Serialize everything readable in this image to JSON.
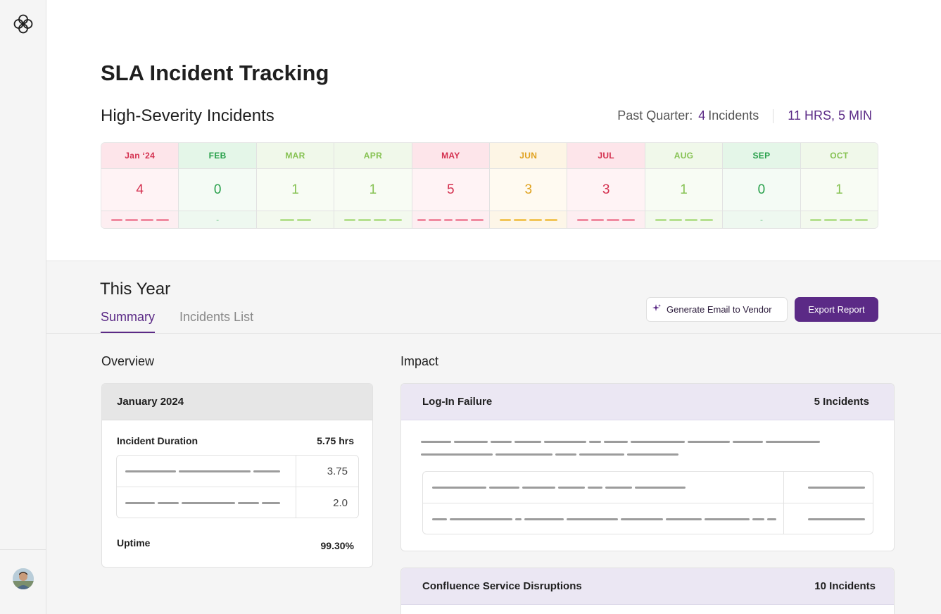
{
  "page": {
    "title": "SLA Incident Tracking"
  },
  "high_severity": {
    "title": "High-Severity Incidents",
    "past_quarter_label": "Past Quarter:",
    "past_quarter_count": "4",
    "past_quarter_unit": "Incidents",
    "duration": "11 HRS, 5 MIN"
  },
  "months": [
    {
      "label": "Jan ‘24",
      "count": "4",
      "level": "red",
      "bars": 4
    },
    {
      "label": "FEB",
      "count": "0",
      "level": "green",
      "bars": 0,
      "empty": "-"
    },
    {
      "label": "MAR",
      "count": "1",
      "level": "lime",
      "bars": 2
    },
    {
      "label": "APR",
      "count": "1",
      "level": "lime",
      "bars": 4
    },
    {
      "label": "MAY",
      "count": "5",
      "level": "red",
      "bars": 5
    },
    {
      "label": "JUN",
      "count": "3",
      "level": "amber",
      "bars": 4
    },
    {
      "label": "JUL",
      "count": "3",
      "level": "red",
      "bars": 4
    },
    {
      "label": "AUG",
      "count": "1",
      "level": "lime",
      "bars": 4
    },
    {
      "label": "SEP",
      "count": "0",
      "level": "green",
      "bars": 0,
      "empty": "-"
    },
    {
      "label": "OCT",
      "count": "1",
      "level": "lime",
      "bars": 4
    }
  ],
  "year": {
    "title": "This Year",
    "tabs": [
      "Summary",
      "Incidents List"
    ],
    "active_tab": "Summary",
    "generate_email_label": "Generate Email to Vendor",
    "export_label": "Export Report"
  },
  "overview": {
    "title": "Overview",
    "month": "January 2024",
    "duration_label": "Incident Duration",
    "duration_value": "5.75 hrs",
    "rows": [
      "3.75",
      "2.0"
    ],
    "uptime_label": "Uptime",
    "uptime_value": "99.30%"
  },
  "impact": {
    "title": "Impact",
    "cards": [
      {
        "name": "Log-In Failure",
        "count": "5 Incidents"
      },
      {
        "name": "Confluence Service Disruptions",
        "count": "10 Incidents"
      }
    ]
  },
  "colors": {
    "accent": "#5b2a86",
    "red": "#d4304f",
    "green": "#27a04a",
    "lime": "#86c252",
    "amber": "#e0a220"
  }
}
